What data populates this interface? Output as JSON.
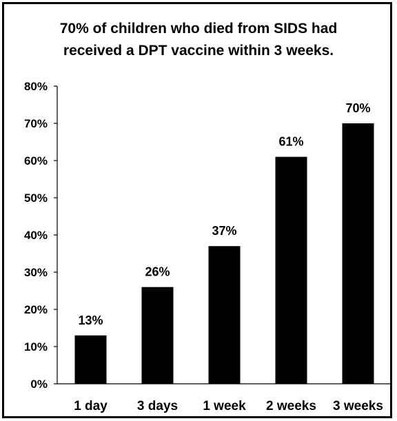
{
  "chart_data": {
    "type": "bar",
    "title_lines": [
      "70% of children who died from SIDS had",
      "received a DPT vaccine within 3 weeks."
    ],
    "categories": [
      "1 day",
      "3 days",
      "1 week",
      "2 weeks",
      "3 weeks"
    ],
    "values": [
      13,
      26,
      37,
      61,
      70
    ],
    "data_labels": [
      "13%",
      "26%",
      "37%",
      "61%",
      "70%"
    ],
    "y_ticks": [
      0,
      10,
      20,
      30,
      40,
      50,
      60,
      70,
      80
    ],
    "y_tick_labels": [
      "0%",
      "10%",
      "20%",
      "30%",
      "40%",
      "50%",
      "60%",
      "70%",
      "80%"
    ],
    "ylim": [
      0,
      80
    ],
    "grid": false,
    "legend": "none",
    "bar_color": "#000000"
  }
}
